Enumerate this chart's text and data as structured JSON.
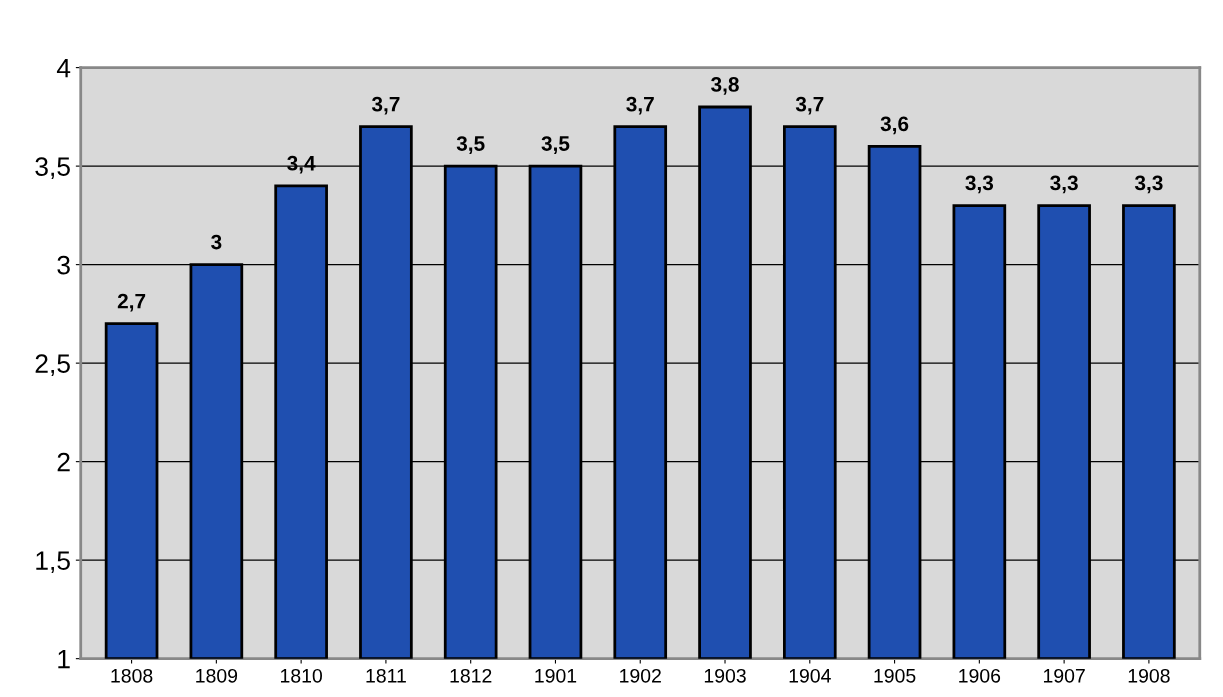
{
  "chart_data": {
    "type": "bar",
    "categories": [
      "1808",
      "1809",
      "1810",
      "1811",
      "1812",
      "1901",
      "1902",
      "1903",
      "1904",
      "1905",
      "1906",
      "1907",
      "1908"
    ],
    "values": [
      2.7,
      3.0,
      3.4,
      3.7,
      3.5,
      3.5,
      3.7,
      3.8,
      3.7,
      3.6,
      3.3,
      3.3,
      3.3
    ],
    "value_labels": [
      "2,7",
      "3",
      "3,4",
      "3,7",
      "3,5",
      "3,5",
      "3,7",
      "3,8",
      "3,7",
      "3,6",
      "3,3",
      "3,3",
      "3,3"
    ],
    "color": "#1f4fb0",
    "ylim": [
      1,
      4
    ],
    "yticks": [
      1,
      {
        "value": 1.5,
        "label": "1,5"
      },
      2,
      {
        "value": 2.5,
        "label": "2,5"
      },
      3,
      {
        "value": 3.5,
        "label": "3,5"
      },
      4
    ],
    "grid": "y"
  }
}
